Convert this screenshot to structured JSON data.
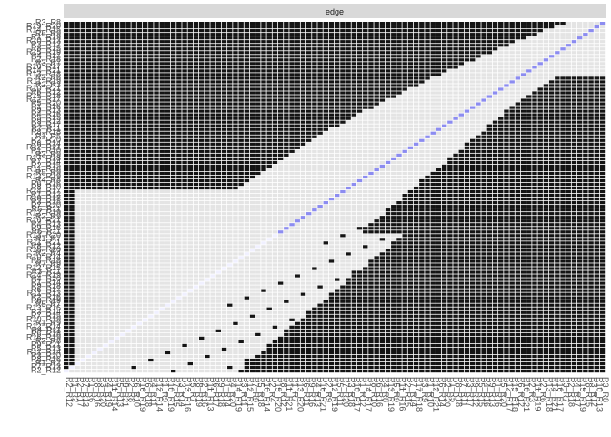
{
  "chart_data": {
    "type": "heatmap",
    "panel_title": "edge",
    "n_rows": 96,
    "n_cols": 96,
    "boundary_top_right": [
      [
        92,
        96
      ],
      [
        90,
        96
      ],
      [
        88,
        96
      ],
      [
        87,
        96
      ],
      [
        86,
        96
      ],
      [
        85,
        96
      ],
      [
        84,
        96
      ],
      [
        83,
        96
      ],
      [
        82,
        96
      ],
      [
        81,
        96
      ],
      [
        80,
        96
      ],
      [
        79,
        96
      ],
      [
        78,
        96
      ],
      [
        77,
        96
      ],
      [
        76,
        96
      ],
      [
        75,
        96
      ],
      [
        74,
        96
      ],
      [
        73,
        96
      ],
      [
        72,
        96
      ],
      [
        71,
        96
      ],
      [
        70,
        96
      ],
      [
        69,
        96
      ],
      [
        68,
        96
      ],
      [
        67,
        96
      ],
      [
        66,
        96
      ],
      [
        65,
        96
      ],
      [
        64,
        96
      ],
      [
        63,
        96
      ],
      [
        62,
        96
      ],
      [
        61,
        96
      ],
      [
        60,
        96
      ],
      [
        59,
        96
      ],
      [
        58,
        96
      ],
      [
        57,
        96
      ],
      [
        56,
        96
      ],
      [
        55,
        96
      ],
      [
        54,
        96
      ],
      [
        53,
        96
      ],
      [
        52,
        96
      ],
      [
        51,
        96
      ],
      [
        50,
        96
      ],
      [
        49,
        96
      ],
      [
        48,
        96
      ],
      [
        47,
        96
      ],
      [
        46,
        96
      ],
      [
        45,
        96
      ],
      [
        44,
        96
      ],
      [
        43,
        96
      ],
      [
        42,
        96
      ],
      [
        41,
        96
      ],
      [
        40,
        96
      ],
      [
        39,
        96
      ],
      [
        38,
        96
      ],
      [
        37,
        96
      ],
      [
        36,
        96
      ],
      [
        35,
        96
      ],
      [
        34,
        96
      ],
      [
        33,
        96
      ],
      [
        32,
        96
      ],
      [
        31,
        96
      ],
      [
        30,
        96
      ],
      [
        29,
        96
      ],
      [
        28,
        96
      ],
      [
        27,
        96
      ],
      [
        26,
        96
      ],
      [
        25,
        96
      ],
      [
        24,
        96
      ],
      [
        23,
        96
      ],
      [
        22,
        96
      ],
      [
        21,
        96
      ],
      [
        20,
        96
      ],
      [
        19,
        96
      ],
      [
        18,
        96
      ],
      [
        17,
        96
      ],
      [
        16,
        96
      ],
      [
        15,
        96
      ],
      [
        14,
        96
      ],
      [
        13,
        96
      ],
      [
        12,
        96
      ],
      [
        11,
        96
      ],
      [
        10,
        96
      ],
      [
        9,
        96
      ],
      [
        8,
        96
      ],
      [
        7,
        96
      ],
      [
        6,
        96
      ],
      [
        5,
        96
      ],
      [
        4,
        96
      ],
      [
        3,
        96
      ],
      [
        2,
        96
      ],
      [
        1,
        96
      ],
      [
        1,
        96
      ],
      [
        1,
        96
      ],
      [
        1,
        96
      ],
      [
        1,
        96
      ],
      [
        1,
        96
      ],
      [
        1,
        96
      ]
    ],
    "diagonal_color": "#8c8cf0",
    "filled_color": "#141414",
    "empty_color": "#e4e4e4",
    "row_labels": [
      "R3_R8",
      "R19_R20",
      "R14_R15",
      "R6_R9",
      "R1_R19",
      "R10_R13",
      "R3_R12",
      "R8_R15",
      "R15_R19",
      "R4_R17",
      "R2_R18",
      "R3_R7",
      "R16_R17",
      "R14_R21",
      "R13_R18",
      "R2_R6",
      "R11_R19",
      "R2_R3",
      "R10_R21",
      "R6_R12",
      "R15_R18",
      "R12_R17",
      "R5_R20",
      "R1_R16",
      "R9_R13",
      "R4_R16",
      "R5_R15",
      "R9_R12",
      "R3_R17",
      "R7_R11",
      "R8_R18",
      "R1_R5",
      "R2_R20",
      "R6_R14",
      "R12_R21",
      "R1_R10",
      "R3_R9",
      "R17_R18",
      "R7_R14",
      "R2_R15",
      "R11_R16",
      "R5_R9",
      "R13_R19",
      "R4_R8",
      "R6_R16",
      "R8_R10",
      "R14_R17",
      "R1_R12",
      "R10_R17",
      "R3_R18",
      "R7_R20",
      "R5_R11",
      "R12_R19",
      "R2_R9",
      "R16_R21",
      "R4_R13",
      "R9_R16",
      "R6_R11",
      "R13_R20",
      "R1_R7",
      "R11_R21",
      "R8_R12",
      "R15_R20",
      "R2_R4",
      "R10_R14",
      "R5_R18",
      "R7_R9",
      "R12_R15",
      "R3_R11",
      "R14_R19",
      "R4_R20",
      "R1_R14",
      "R9_R18",
      "R6_R17",
      "R11_R13",
      "R2_R16",
      "R8_R19",
      "R5_R7",
      "R13_R16",
      "R3_R14",
      "R7_R15",
      "R10_R19",
      "R1_R9",
      "R12_R14",
      "R4_R11",
      "R6_R18",
      "R16_R19",
      "R2_R8",
      "R9_R21",
      "R5_R13",
      "R11_R14",
      "R3_R20",
      "R8_R16",
      "R1_R2",
      "R7_R13",
      "R2_R12"
    ],
    "col_labels": [
      "R2_R12",
      "R1_R2",
      "R2_R17",
      "R7_R13",
      "R1_R6",
      "R8_R16",
      "R3_R20",
      "R4_R19",
      "R11_R14",
      "R5_R13",
      "R9_R21",
      "R2_R8",
      "R6_R10",
      "R16_R19",
      "R6_R18",
      "R4_R11",
      "R12_R14",
      "R1_R9",
      "R10_R19",
      "R7_R15",
      "R3_R14",
      "R13_R16",
      "R5_R7",
      "R8_R19",
      "R2_R16",
      "R11_R13",
      "R6_R17",
      "R9_R18",
      "R1_R14",
      "R4_R20",
      "R14_R19",
      "R3_R11",
      "R12_R15",
      "R7_R9",
      "R5_R18",
      "R10_R14",
      "R2_R4",
      "R15_R20",
      "R8_R12",
      "R11_R21",
      "R1_R7",
      "R13_R20",
      "R6_R11",
      "R9_R16",
      "R4_R13",
      "R16_R21",
      "R2_R9",
      "R12_R19",
      "R5_R11",
      "R7_R20",
      "R3_R18",
      "R10_R17",
      "R1_R12",
      "R14_R17",
      "R8_R10",
      "R6_R16",
      "R4_R8",
      "R13_R19",
      "R5_R9",
      "R11_R16",
      "R2_R15",
      "R7_R14",
      "R17_R18",
      "R3_R9",
      "R1_R10",
      "R12_R21",
      "R6_R14",
      "R2_R20",
      "R1_R5",
      "R8_R18",
      "R7_R11",
      "R3_R17",
      "R9_R12",
      "R5_R15",
      "R4_R16",
      "R9_R13",
      "R1_R16",
      "R5_R20",
      "R12_R17",
      "R15_R18",
      "R6_R12",
      "R10_R21",
      "R2_R3",
      "R11_R19",
      "R2_R6",
      "R13_R18",
      "R14_R21",
      "R16_R17",
      "R3_R7",
      "R2_R18",
      "R4_R17",
      "R15_R19",
      "R8_R15",
      "R3_R12",
      "R10_R13",
      "R3_R8"
    ]
  },
  "colors": {
    "panel_strip": "#d9d9d9",
    "strip_text": "#1a1a1a",
    "label_text": "#4d4d4d",
    "cell_gap": "#ffffff"
  }
}
